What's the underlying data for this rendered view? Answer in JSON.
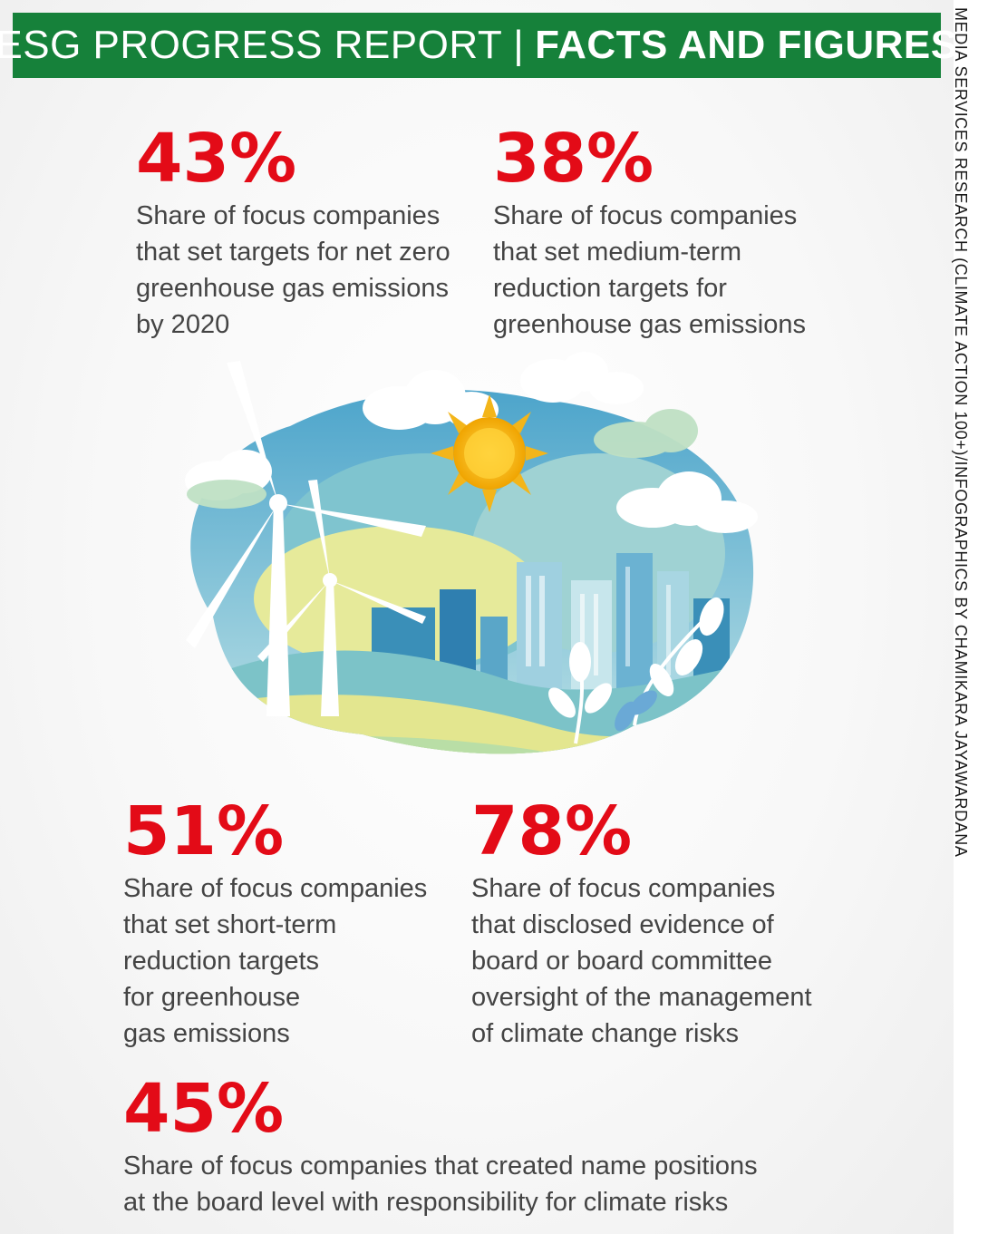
{
  "header": {
    "title_regular": "ESG PROGRESS REPORT",
    "separator": "|",
    "title_bold": "FACTS AND FIGURES"
  },
  "credit": "MEDIA SERVICES RESEARCH (CLIMATE ACTION 100+)/INFOGRAPHICS BY CHAMIKARA JAYAWARDANA",
  "stats": [
    {
      "value": "43%",
      "description": "Share of focus companies\nthat set targets for net zero\ngreenhouse gas emissions\nby 2020"
    },
    {
      "value": "38%",
      "description": "Share of focus companies\nthat set medium-term\nreduction targets for\ngreenhouse gas emissions"
    },
    {
      "value": "51%",
      "description": "Share of focus companies\nthat set short-term\nreduction targets\nfor greenhouse\ngas emissions"
    },
    {
      "value": "78%",
      "description": "Share of focus companies\nthat disclosed evidence of\nboard or board committee\noversight of the management\nof climate change risks"
    },
    {
      "value": "45%",
      "description": "Share of focus companies that created name positions\nat the board level with responsibility for climate risks"
    }
  ],
  "colors": {
    "header_bg": "#16813a",
    "percent": "#e30b17",
    "body_text": "#444444"
  },
  "illustration": {
    "icons": [
      "wind-turbine-icon",
      "sun-icon",
      "cloud-icon",
      "city-skyline-icon",
      "leaf-plant-icon"
    ]
  }
}
